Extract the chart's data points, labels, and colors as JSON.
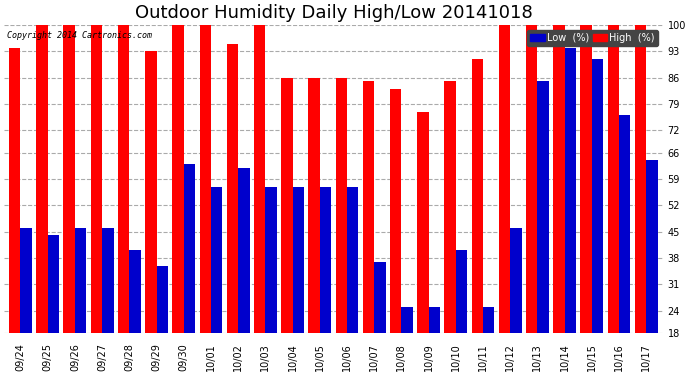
{
  "title": "Outdoor Humidity Daily High/Low 20141018",
  "copyright": "Copyright 2014 Cartronics.com",
  "categories": [
    "09/24",
    "09/25",
    "09/26",
    "09/27",
    "09/28",
    "09/29",
    "09/30",
    "10/01",
    "10/02",
    "10/03",
    "10/04",
    "10/05",
    "10/06",
    "10/07",
    "10/08",
    "10/09",
    "10/10",
    "10/11",
    "10/12",
    "10/13",
    "10/14",
    "10/15",
    "10/16",
    "10/17"
  ],
  "high_values": [
    94,
    100,
    100,
    100,
    100,
    93,
    100,
    100,
    95,
    100,
    86,
    86,
    86,
    85,
    83,
    77,
    85,
    91,
    100,
    100,
    100,
    100,
    100,
    100
  ],
  "low_values": [
    46,
    44,
    46,
    46,
    40,
    36,
    63,
    57,
    62,
    57,
    57,
    57,
    57,
    37,
    25,
    25,
    40,
    25,
    46,
    85,
    94,
    91,
    76,
    64
  ],
  "high_color": "#ff0000",
  "low_color": "#0000cc",
  "bg_color": "#ffffff",
  "plot_bg_color": "#ffffff",
  "grid_color": "#aaaaaa",
  "ymin": 18,
  "ymax": 100,
  "yticks": [
    18,
    24,
    31,
    38,
    45,
    52,
    59,
    66,
    72,
    79,
    86,
    93,
    100
  ],
  "bar_width": 0.42,
  "title_fontsize": 13,
  "tick_fontsize": 7,
  "xlabel_rotation": 90
}
